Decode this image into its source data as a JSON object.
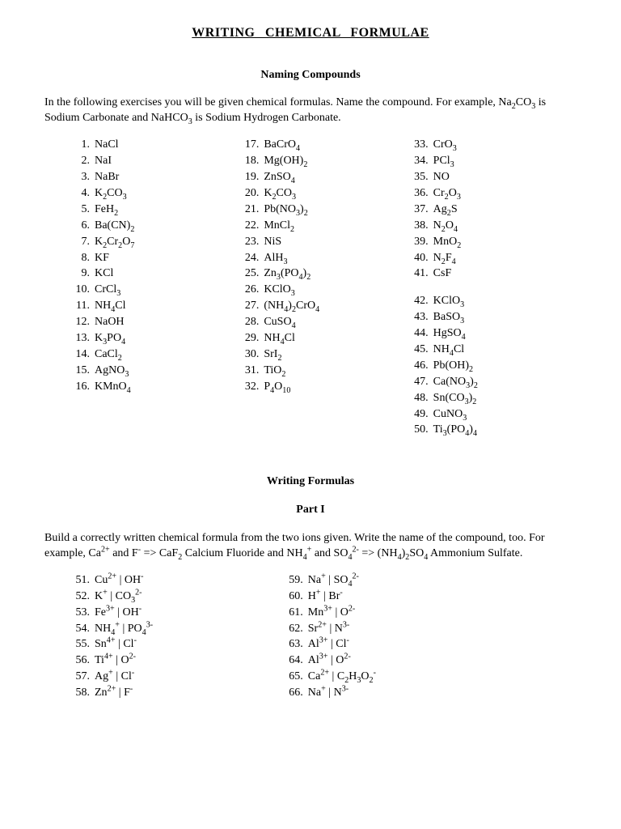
{
  "title": "WRITING   CHEMICAL   FORMULAE",
  "section1": {
    "heading": "Naming Compounds",
    "intro_plain": "In the following exercises you will be given chemical formulas. Name the compound. For example, Na2CO3 is Sodium Carbonate and NaHCO3 is Sodium Hydrogen Carbonate.",
    "intro_html": "In the following exercises you will be given chemical formulas. Name the compound. For example, Na<span class='sub'>2</span>CO<span class='sub'>3</span> is Sodium Carbonate and NaHCO<span class='sub'>3</span> is Sodium Hydrogen Carbonate.",
    "items": [
      {
        "n": 1,
        "f": "NaCl"
      },
      {
        "n": 2,
        "f": "NaI"
      },
      {
        "n": 3,
        "f": "NaBr"
      },
      {
        "n": 4,
        "f": "K<span class='sub'>2</span>CO<span class='sub'>3</span>"
      },
      {
        "n": 5,
        "f": "FeH<span class='sub'>2</span>"
      },
      {
        "n": 6,
        "f": "Ba(CN)<span class='sub'>2</span>"
      },
      {
        "n": 7,
        "f": "K<span class='sub'>2</span>Cr<span class='sub'>2</span>O<span class='sub'>7</span>"
      },
      {
        "n": 8,
        "f": "KF"
      },
      {
        "n": 9,
        "f": "KCl"
      },
      {
        "n": 10,
        "f": "CrCl<span class='sub'>3</span>"
      },
      {
        "n": 11,
        "f": "NH<span class='sub'>4</span>Cl"
      },
      {
        "n": 12,
        "f": "NaOH"
      },
      {
        "n": 13,
        "f": "K<span class='sub'>3</span>PO<span class='sub'>4</span>"
      },
      {
        "n": 14,
        "f": "CaCl<span class='sub'>2</span>"
      },
      {
        "n": 15,
        "f": "AgNO<span class='sub'>3</span>"
      },
      {
        "n": 16,
        "f": "KMnO<span class='sub'>4</span>"
      },
      {
        "n": 17,
        "f": "BaCrO<span class='sub'>4</span>"
      },
      {
        "n": 18,
        "f": "Mg(OH)<span class='sub'>2</span>"
      },
      {
        "n": 19,
        "f": "ZnSO<span class='sub'>4</span>"
      },
      {
        "n": 20,
        "f": "K<span class='sub'>2</span>CO<span class='sub'>3</span>"
      },
      {
        "n": 21,
        "f": "Pb(NO<span class='sub'>3</span>)<span class='sub'>2</span>"
      },
      {
        "n": 22,
        "f": "MnCl<span class='sub'>2</span>"
      },
      {
        "n": 23,
        "f": "NiS"
      },
      {
        "n": 24,
        "f": "AlH<span class='sub'>3</span>"
      },
      {
        "n": 25,
        "f": "Zn<span class='sub'>3</span>(PO<span class='sub'>4</span>)<span class='sub'>2</span>"
      },
      {
        "n": 26,
        "f": "KClO<span class='sub'>3</span>"
      },
      {
        "n": 27,
        "f": "(NH<span class='sub'>4</span>)<span class='sub'>2</span>CrO<span class='sub'>4</span>"
      },
      {
        "n": 28,
        "f": "CuSO<span class='sub'>4</span>"
      },
      {
        "n": 29,
        "f": "NH<span class='sub'>4</span>Cl"
      },
      {
        "n": 30,
        "f": "SrI<span class='sub'>2</span>"
      },
      {
        "n": 31,
        "f": "TiO<span class='sub'>2</span>"
      },
      {
        "n": 32,
        "f": "P<span class='sub'>4</span>O<span class='sub'>10</span>"
      },
      {
        "n": 33,
        "f": "CrO<span class='sub'>3</span>"
      },
      {
        "n": 34,
        "f": "PCl<span class='sub'>3</span>"
      },
      {
        "n": 35,
        "f": "NO"
      },
      {
        "n": 36,
        "f": "Cr<span class='sub'>2</span>O<span class='sub'>3</span>"
      },
      {
        "n": 37,
        "f": "Ag<span class='sub'>2</span>S"
      },
      {
        "n": 38,
        "f": "N<span class='sub'>2</span>O<span class='sub'>4</span>"
      },
      {
        "n": 39,
        "f": "MnO<span class='sub'>2</span>"
      },
      {
        "n": 40,
        "f": "N<span class='sub'>2</span>F<span class='sub'>4</span>"
      },
      {
        "n": 41,
        "f": "CsF"
      },
      {
        "n": 42,
        "f": "KClO<span class='sub'>3</span>"
      },
      {
        "n": 43,
        "f": "BaSO<span class='sub'>3</span>"
      },
      {
        "n": 44,
        "f": "HgSO<span class='sub'>4</span>"
      },
      {
        "n": 45,
        "f": "NH<span class='sub'>4</span>Cl"
      },
      {
        "n": 46,
        "f": "Pb(OH)<span class='sub'>2</span>"
      },
      {
        "n": 47,
        "f": "Ca(NO<span class='sub'>3</span>)<span class='sub'>2</span>"
      },
      {
        "n": 48,
        "f": "Sn(CO<span class='sub'>3</span>)<span class='sub'>2</span>"
      },
      {
        "n": 49,
        "f": "CuNO<span class='sub'>3</span>"
      },
      {
        "n": 50,
        "f": "Ti<span class='sub'>3</span>(PO<span class='sub'>4</span>)<span class='sub'>4</span>"
      }
    ]
  },
  "section2": {
    "heading": "Writing Formulas",
    "part": "Part I",
    "intro_html": "Build a correctly written chemical formula from the two ions given. Write the name of the compound, too. For example, Ca<span class='sup'>2+</span> and F<span class='sup'>-</span> =&gt; CaF<span class='sub'>2</span> Calcium Fluoride and NH<span class='sub'>4</span><span class='sup'>+</span> and SO<span class='sub'>4</span><span class='sup'>2-</span> =&gt; (NH<span class='sub'>4</span>)<span class='sub'>2</span>SO<span class='sub'>4</span> Ammonium Sulfate.",
    "items": [
      {
        "n": 51,
        "f": "Cu<span class='sup'>2+</span> | OH<span class='sup'>-</span>"
      },
      {
        "n": 52,
        "f": "K<span class='sup'>+</span> | CO<span class='sub'>3</span><span class='sup'>2-</span>"
      },
      {
        "n": 53,
        "f": "Fe<span class='sup'>3+</span> | OH<span class='sup'>-</span>"
      },
      {
        "n": 54,
        "f": "NH<span class='sub'>4</span><span class='sup'>+</span> | PO<span class='sub'>4</span><span class='sup'>3-</span>"
      },
      {
        "n": 55,
        "f": "Sn<span class='sup'>4+</span> | Cl<span class='sup'>-</span>"
      },
      {
        "n": 56,
        "f": "Ti<span class='sup'>4+</span> | O<span class='sup'>2-</span>"
      },
      {
        "n": 57,
        "f": "Ag<span class='sup'>+</span> | Cl<span class='sup'>-</span>"
      },
      {
        "n": 58,
        "f": "Zn<span class='sup'>2+</span> | F<span class='sup'>-</span>"
      },
      {
        "n": 59,
        "f": "Na<span class='sup'>+</span> | SO<span class='sub'>4</span><span class='sup'>2-</span>"
      },
      {
        "n": 60,
        "f": "H<span class='sup'>+</span> | Br<span class='sup'>-</span>"
      },
      {
        "n": 61,
        "f": "Mn<span class='sup'>3+</span> | O<span class='sup'>2-</span>"
      },
      {
        "n": 62,
        "f": "Sr<span class='sup'>2+</span> | N<span class='sup'>3-</span>"
      },
      {
        "n": 63,
        "f": "Al<span class='sup'>3+</span> | Cl<span class='sup'>-</span>"
      },
      {
        "n": 64,
        "f": "Al<span class='sup'>3+</span> | O<span class='sup'>2-</span>"
      },
      {
        "n": 65,
        "f": "Ca<span class='sup'>2+</span> | C<span class='sub'>2</span>H<span class='sub'>3</span>O<span class='sub'>2</span><span class='sup'>-</span>"
      },
      {
        "n": 66,
        "f": "Na<span class='sup'>+</span> | N<span class='sup'>3-</span>"
      }
    ]
  }
}
